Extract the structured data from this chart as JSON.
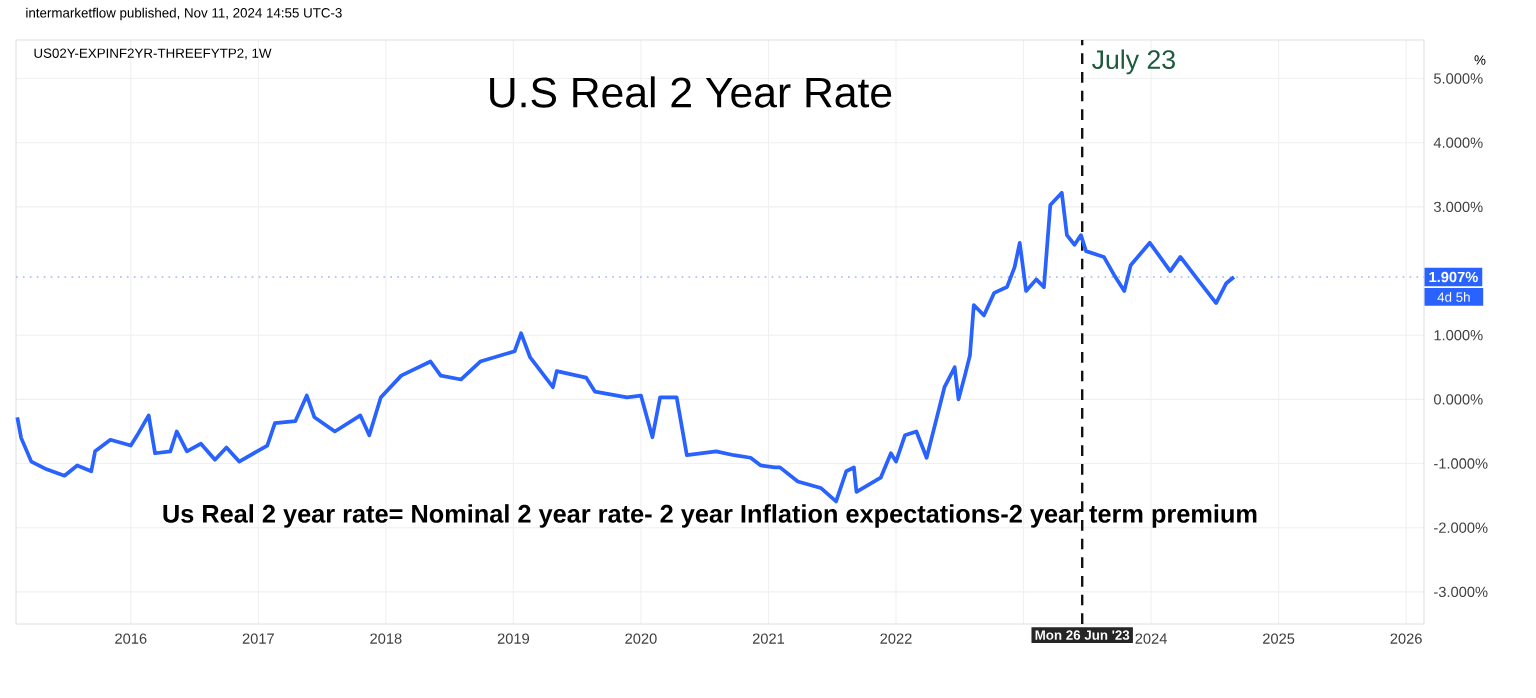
{
  "chart_data": {
    "type": "line",
    "title": "U.S Real 2 Year Rate",
    "annotations": [
      "intermarketflow published, Nov 11, 2024 14:55 UTC-3",
      "US02Y-EXPINF2YR-THREEFYTP2, 1W",
      "Us Real 2 year rate= Nominal 2 year rate- 2 year Inflation expectations-2 year term premium",
      "%",
      "4d 5h",
      "Mon 26 Jun '23"
    ],
    "x": [
      2015.11,
      2015.14,
      2015.22,
      2015.34,
      2015.48,
      2015.58,
      2015.69,
      2015.72,
      2015.84,
      2016.0,
      2016.05,
      2016.14,
      2016.19,
      2016.31,
      2016.36,
      2016.44,
      2016.55,
      2016.66,
      2016.75,
      2016.85,
      2017.07,
      2017.13,
      2017.29,
      2017.38,
      2017.44,
      2017.6,
      2017.8,
      2017.87,
      2017.96,
      2018.12,
      2018.35,
      2018.43,
      2018.59,
      2018.74,
      2019.01,
      2019.06,
      2019.13,
      2019.31,
      2019.34,
      2019.57,
      2019.64,
      2019.89,
      2020.0,
      2020.09,
      2020.15,
      2020.28,
      2020.36,
      2020.59,
      2020.73,
      2020.86,
      2020.94,
      2021.05,
      2021.09,
      2021.23,
      2021.41,
      2021.53,
      2021.61,
      2021.67,
      2021.69,
      2021.88,
      2021.96,
      2022.0,
      2022.07,
      2022.16,
      2022.24,
      2022.3,
      2022.38,
      2022.46,
      2022.49,
      2022.54,
      2022.58,
      2022.61,
      2022.69,
      2022.77,
      2022.87,
      2022.93,
      2022.97,
      2023.02,
      2023.1,
      2023.16,
      2023.21,
      2023.3,
      2023.34,
      2023.4,
      2023.45,
      2023.49,
      2023.63,
      2023.71,
      2023.79,
      2023.84,
      2023.99,
      2024.07,
      2024.15,
      2024.23,
      2024.35,
      2024.51,
      2024.59,
      2024.65
    ],
    "series": [
      {
        "color": "#2962ff",
        "values": [
          -0.28,
          -0.6,
          -0.97,
          -1.09,
          -1.19,
          -1.03,
          -1.12,
          -0.81,
          -0.63,
          -0.72,
          -0.56,
          -0.25,
          -0.84,
          -0.81,
          -0.5,
          -0.81,
          -0.69,
          -0.94,
          -0.75,
          -0.97,
          -0.72,
          -0.37,
          -0.34,
          0.06,
          -0.28,
          -0.5,
          -0.25,
          -0.56,
          0.03,
          0.37,
          0.59,
          0.37,
          0.31,
          0.59,
          0.75,
          1.03,
          0.66,
          0.19,
          0.44,
          0.34,
          0.12,
          0.03,
          0.06,
          -0.59,
          0.03,
          0.03,
          -0.87,
          -0.81,
          -0.87,
          -0.91,
          -1.03,
          -1.06,
          -1.06,
          -1.28,
          -1.38,
          -1.59,
          -1.12,
          -1.06,
          -1.44,
          -1.22,
          -0.84,
          -0.97,
          -0.56,
          -0.5,
          -0.91,
          -0.44,
          0.19,
          0.5,
          0.0,
          0.37,
          0.69,
          1.47,
          1.31,
          1.66,
          1.75,
          2.06,
          2.44,
          1.69,
          1.87,
          1.75,
          3.03,
          3.22,
          2.56,
          2.41,
          2.56,
          2.31,
          2.22,
          1.94,
          1.69,
          2.09,
          2.44,
          2.22,
          2.0,
          2.22,
          1.91,
          1.5,
          1.81,
          1.907
        ]
      }
    ],
    "xlim": [
      2015.1,
      2026.14
    ],
    "ylim": [
      -3.5,
      5.6
    ],
    "xticks": [
      2016,
      2017,
      2018,
      2019,
      2020,
      2021,
      2022,
      {
        "value": 2023,
        "label": null
      },
      2024,
      2025,
      2026
    ],
    "yticks": [
      {
        "value": -3,
        "label": "-3.000%"
      },
      {
        "value": -2,
        "label": "-2.000%"
      },
      {
        "value": -1,
        "label": "-1.000%"
      },
      {
        "value": 0,
        "label": "0.000%"
      },
      {
        "value": 1,
        "label": "1.000%"
      },
      {
        "value": 3,
        "label": "3.000%"
      },
      {
        "value": 4,
        "label": "4.000%"
      },
      {
        "value": 5,
        "label": "5.000%"
      }
    ],
    "ref_lines": [
      {
        "axis": "x",
        "value": 2023.46,
        "label": "July 23",
        "color": "#111111",
        "line_style": "dashed"
      },
      {
        "axis": "y",
        "value": 1.907,
        "label": "1.907%",
        "color": "#9fb4f7",
        "line_style": "dotted"
      }
    ],
    "grid": true,
    "marker": "none",
    "line_style": "solid"
  }
}
